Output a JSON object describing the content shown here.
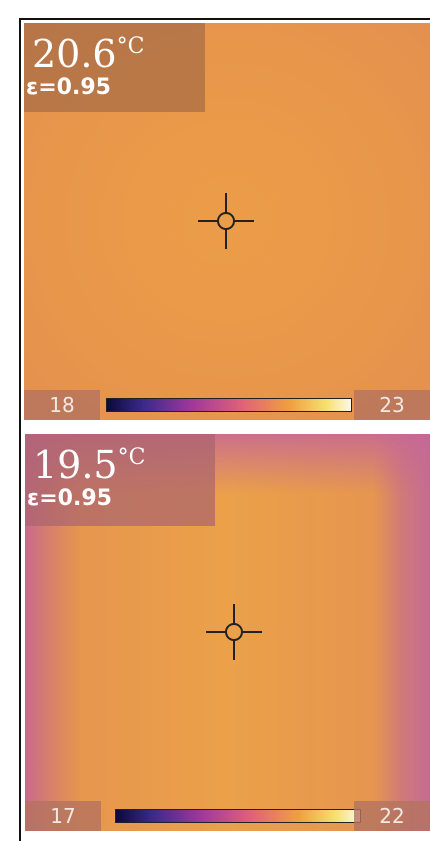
{
  "panels": [
    {
      "temperature": "20.6",
      "unit": "°C",
      "emissivity": "ε=0.95",
      "scale_min": "18",
      "scale_max": "23"
    },
    {
      "temperature": "19.5",
      "unit": "°C",
      "emissivity": "ε=0.95",
      "scale_min": "17",
      "scale_max": "22"
    }
  ]
}
